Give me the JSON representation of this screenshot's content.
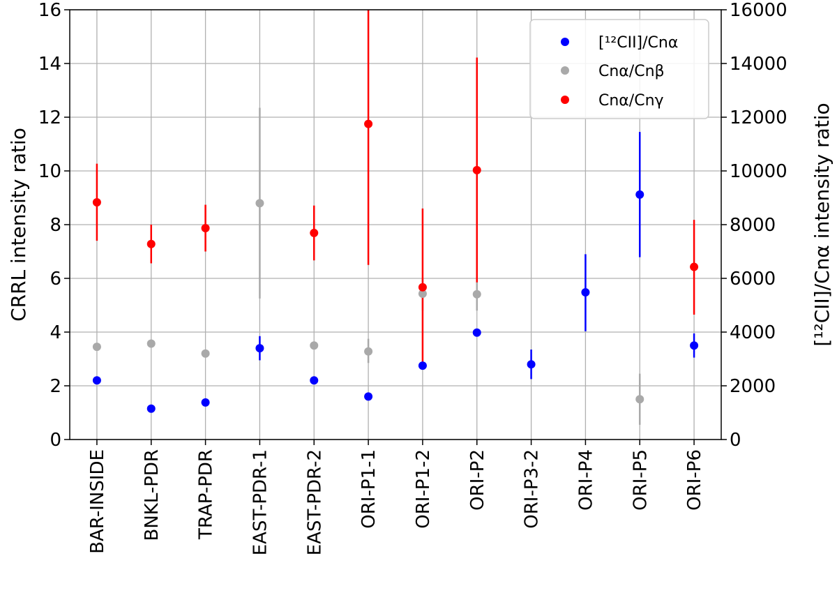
{
  "chart_data": {
    "type": "scatter",
    "categories": [
      "BAR-INSIDE",
      "BNKL-PDR",
      "TRAP-PDR",
      "EAST-PDR-1",
      "EAST-PDR-2",
      "ORI-P1-1",
      "ORI-P1-2",
      "ORI-P2",
      "ORI-P3-2",
      "ORI-P4",
      "ORI-P5",
      "ORI-P6"
    ],
    "ylabel_left": "CRRL intensity ratio",
    "ylabel_right": "[¹²CII]/Cnα intensity ratio",
    "ylim_left": [
      0,
      16
    ],
    "ylim_right": [
      0,
      16000
    ],
    "yticks_left": [
      "0",
      "2",
      "4",
      "6",
      "8",
      "10",
      "12",
      "14",
      "16"
    ],
    "yticks_right": [
      "0",
      "2000",
      "4000",
      "6000",
      "8000",
      "10000",
      "12000",
      "14000",
      "16000"
    ],
    "grid": true,
    "legend_position": "top-right",
    "series": [
      {
        "name": "[¹²CII]/Cnα",
        "axis": "right",
        "color": "#0000ff",
        "values": [
          2200,
          1150,
          1380,
          3400,
          2200,
          1600,
          2750,
          3980,
          2800,
          5480,
          9120,
          3500
        ],
        "err_low": [
          null,
          null,
          null,
          2950,
          null,
          null,
          null,
          null,
          2250,
          4030,
          6790,
          3050
        ],
        "err_high": [
          null,
          null,
          null,
          3850,
          null,
          null,
          null,
          null,
          3350,
          6900,
          11450,
          3950
        ]
      },
      {
        "name": "Cnα/Cnβ",
        "axis": "left",
        "color": "#a9a9a9",
        "values": [
          3.45,
          3.57,
          3.2,
          8.8,
          3.5,
          3.28,
          5.43,
          5.41,
          null,
          null,
          1.5,
          null
        ],
        "err_low": [
          null,
          null,
          null,
          5.25,
          null,
          2.85,
          4.8,
          4.8,
          null,
          null,
          0.55,
          null
        ],
        "err_high": [
          null,
          null,
          null,
          12.35,
          null,
          3.75,
          6.0,
          6.0,
          null,
          null,
          2.45,
          null
        ]
      },
      {
        "name": "Cnα/Cnγ",
        "axis": "left",
        "color": "#ff0000",
        "values": [
          8.83,
          7.28,
          7.87,
          null,
          7.69,
          11.75,
          5.67,
          10.03,
          null,
          null,
          null,
          6.43
        ],
        "err_low": [
          7.4,
          6.56,
          7.0,
          null,
          6.67,
          6.5,
          2.9,
          5.85,
          null,
          null,
          null,
          4.65
        ],
        "err_high": [
          10.27,
          8.0,
          8.74,
          null,
          8.71,
          16.0,
          8.6,
          14.22,
          null,
          null,
          null,
          8.18
        ]
      }
    ]
  }
}
